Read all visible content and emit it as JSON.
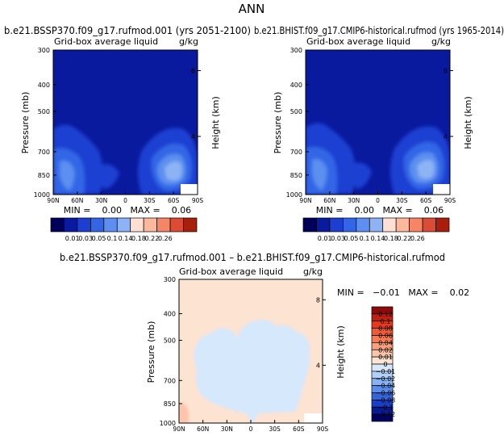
{
  "page_title": "ANN",
  "panels": {
    "left": {
      "title": "b.e21.BSSP370.f09_g17.rufmod.001 (yrs 2051-2100)",
      "subtitle": "Grid-box average liquid",
      "units": "g/kg",
      "ylabel": "Pressure (mb)",
      "y2label": "Height (km)",
      "stats": "MIN =    0.00   MAX =    0.06"
    },
    "right": {
      "title": "b.e21.BHIST.f09_g17.CMIP6-historical.rufmod (yrs 1965-2014)",
      "subtitle": "Grid-box average liquid",
      "units": "g/kg",
      "ylabel": "Pressure (mb)",
      "y2label": "Height (km)",
      "stats": "MIN =    0.00   MAX =    0.06"
    },
    "diff": {
      "title": "b.e21.BSSP370.f09_g17.rufmod.001 – b.e21.BHIST.f09_g17.CMIP6-historical.rufmod",
      "subtitle": "Grid-box average liquid",
      "units": "g/kg",
      "ylabel": "Pressure (mb)",
      "y2label": "Height (km)",
      "stats": "MIN =   −0.01   MAX =    0.02"
    }
  },
  "chart_data": [
    {
      "type": "heatmap",
      "name": "scenario",
      "x_ticks": [
        "90N",
        "60N",
        "30N",
        "0",
        "30S",
        "60S",
        "90S"
      ],
      "y_ticks": [
        "300",
        "400",
        "500",
        "700",
        "850",
        "1000"
      ],
      "y2_ticks": [
        "8",
        "4"
      ],
      "levels": [
        0.01,
        0.03,
        0.05,
        0.1,
        0.14,
        0.18,
        0.22,
        0.26
      ],
      "colors": [
        "#00005a",
        "#0a1a9e",
        "#1c3fd2",
        "#3366e6",
        "#5c8fef",
        "#8cb3f4",
        "#ffe0d2",
        "#fbb89a",
        "#f48666",
        "#dc4c34",
        "#a8200c"
      ],
      "xlim": [
        "90N",
        "90S"
      ],
      "ylim": [
        1000,
        300
      ],
      "fields": [
        {
          "lat": -45,
          "p": 850,
          "value": 0.05
        },
        {
          "lat": 60,
          "p": 860,
          "value": 0.03
        }
      ]
    },
    {
      "type": "heatmap",
      "name": "historical",
      "x_ticks": [
        "90N",
        "60N",
        "30N",
        "0",
        "30S",
        "60S",
        "90S"
      ],
      "y_ticks": [
        "300",
        "400",
        "500",
        "700",
        "850",
        "1000"
      ],
      "y2_ticks": [
        "8",
        "4"
      ],
      "levels": [
        0.01,
        0.03,
        0.05,
        0.1,
        0.14,
        0.18,
        0.22,
        0.26
      ],
      "colors": [
        "#00005a",
        "#0a1a9e",
        "#1c3fd2",
        "#3366e6",
        "#5c8fef",
        "#8cb3f4",
        "#ffe0d2",
        "#fbb89a",
        "#f48666",
        "#dc4c34",
        "#a8200c"
      ],
      "xlim": [
        "90N",
        "90S"
      ],
      "ylim": [
        1000,
        300
      ],
      "fields": [
        {
          "lat": -45,
          "p": 850,
          "value": 0.05
        },
        {
          "lat": 60,
          "p": 860,
          "value": 0.03
        }
      ]
    },
    {
      "type": "heatmap",
      "name": "difference",
      "x_ticks": [
        "90N",
        "60N",
        "30N",
        "0",
        "30S",
        "60S",
        "90S"
      ],
      "y_ticks": [
        "300",
        "400",
        "500",
        "700",
        "850",
        "1000"
      ],
      "y2_ticks": [
        "8",
        "4"
      ],
      "levels": [
        0.12,
        0.1,
        0.08,
        0.06,
        0.04,
        0.02,
        0.01,
        0,
        -0.01,
        -0.02,
        -0.04,
        -0.06,
        -0.08,
        -0.1,
        -0.12
      ],
      "level_labels": [
        "0.12",
        "0.1",
        "0.08",
        "0.06",
        "0.04",
        "0.02",
        "0.01",
        "0",
        "−0.01",
        "−0.02",
        "−0.04",
        "−0.06",
        "−0.08",
        "−0.1",
        "−0.12"
      ],
      "colors": [
        "#8f0a0a",
        "#c0200f",
        "#e63a1c",
        "#f05a35",
        "#f67c56",
        "#f9a07d",
        "#fcc4a8",
        "#fde3d2",
        "#d6e8fc",
        "#b0d0f8",
        "#86b1f2",
        "#5a8dea",
        "#3264dc",
        "#1a3ec4",
        "#0a1a94",
        "#000060"
      ],
      "xlim": [
        "90N",
        "90S"
      ],
      "ylim": [
        1000,
        300
      ],
      "fields": [
        {
          "lat": 0,
          "p": 650,
          "value": -0.01
        },
        {
          "lat": 0,
          "p": 400,
          "value": 0.01
        }
      ]
    }
  ]
}
